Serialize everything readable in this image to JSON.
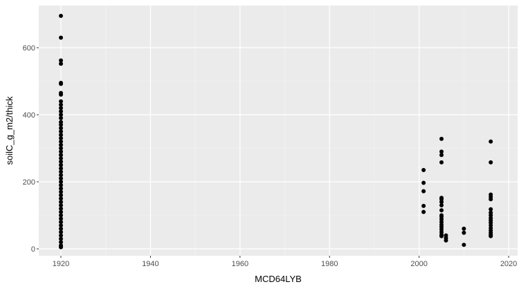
{
  "chart_data": {
    "type": "scatter",
    "x_label": "MCD64LYB",
    "y_label": "soilC_g_m2/thick",
    "x": [
      1920,
      1920,
      1920,
      1920,
      1920,
      1920,
      1920,
      1920,
      1920,
      1920,
      1920,
      1920,
      1920,
      1920,
      1920,
      1920,
      1920,
      1920,
      1920,
      1920,
      1920,
      1920,
      1920,
      1920,
      1920,
      1920,
      1920,
      1920,
      1920,
      1920,
      1920,
      1920,
      1920,
      1920,
      1920,
      1920,
      1920,
      1920,
      1920,
      1920,
      1920,
      1920,
      1920,
      1920,
      1920,
      1920,
      1920,
      1920,
      1920,
      1920,
      1920,
      1920,
      1920,
      2001,
      2001,
      2001,
      2001,
      2001,
      2005,
      2005,
      2005,
      2005,
      2005,
      2005,
      2005,
      2005,
      2005,
      2005,
      2005,
      2005,
      2005,
      2005,
      2005,
      2005,
      2005,
      2005,
      2005,
      2006,
      2006,
      2006,
      2010,
      2010,
      2010,
      2016,
      2016,
      2016,
      2016,
      2016,
      2016,
      2016,
      2016,
      2016,
      2016,
      2016,
      2016,
      2016,
      2016,
      2016,
      2016,
      2016
    ],
    "values": [
      695,
      630,
      562,
      552,
      495,
      492,
      465,
      460,
      440,
      430,
      420,
      410,
      400,
      390,
      378,
      370,
      360,
      350,
      340,
      330,
      320,
      310,
      300,
      290,
      280,
      270,
      260,
      250,
      240,
      230,
      220,
      210,
      200,
      190,
      180,
      170,
      160,
      150,
      140,
      130,
      120,
      110,
      100,
      90,
      80,
      70,
      60,
      50,
      40,
      30,
      20,
      10,
      5,
      235,
      197,
      172,
      128,
      110,
      328,
      290,
      280,
      258,
      152,
      148,
      140,
      130,
      115,
      100,
      95,
      88,
      80,
      72,
      65,
      58,
      50,
      42,
      38,
      40,
      32,
      25,
      60,
      48,
      12,
      320,
      258,
      162,
      155,
      148,
      118,
      108,
      100,
      92,
      85,
      78,
      70,
      62,
      55,
      48,
      42,
      38
    ],
    "color": "#000000",
    "xlim": [
      1915.05,
      2022.0
    ],
    "xticks": [
      1920,
      1940,
      1960,
      1980,
      2000,
      2020
    ],
    "xminor": [
      1930,
      1950,
      1970,
      1990,
      2010
    ],
    "ylim": [
      -20.6,
      725.8
    ],
    "yticks": [
      0,
      200,
      400,
      600
    ],
    "yminor": [
      100,
      300,
      500
    ],
    "grid": true
  }
}
